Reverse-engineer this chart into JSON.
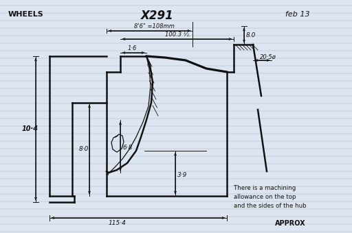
{
  "bg_color": "#dde5f0",
  "line_color": "#111111",
  "line_color2": "#333333",
  "title": "X291",
  "label_wheels": "WHEELS",
  "label_feb": "feb 13",
  "dim_86": "8'6\" =108mm",
  "dim_100": "100.3 ½.",
  "dim_10_4": "10·4",
  "dim_1_6": "1·6",
  "dim_8_0_left": "8·0",
  "dim_6_8": "6·8",
  "dim_3_9": "3·9",
  "dim_8_0_right": "8.0",
  "dim_20_5": "20·5ø",
  "dim_115_4": "115·4",
  "note": "There is a machining\nallowance on the top\nand the sides of the hub",
  "approx": "APPROX",
  "lw_main": 1.8,
  "lw_thin": 0.9,
  "lw_dim": 0.7
}
